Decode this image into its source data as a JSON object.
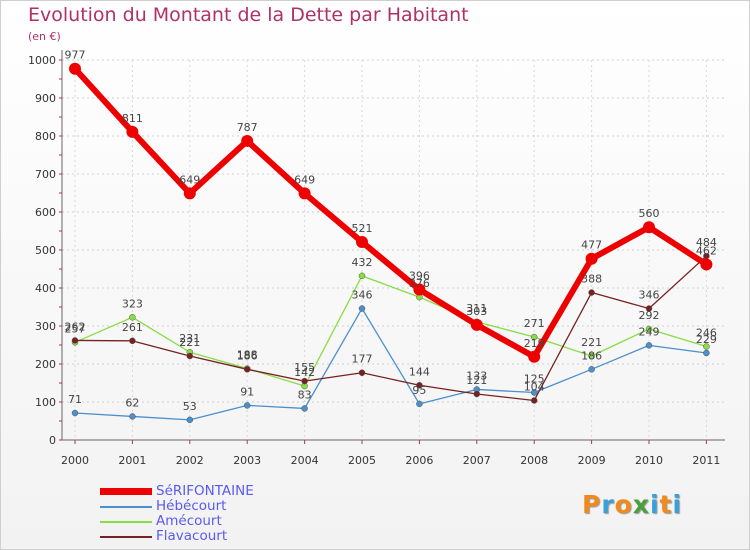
{
  "chart_data": {
    "type": "line",
    "title": "Evolution du Montant de la Dette par Habitant",
    "subtitle": "(en €)",
    "xlabel": "",
    "ylabel": "",
    "x": [
      "2000",
      "2001",
      "2002",
      "2003",
      "2004",
      "2005",
      "2006",
      "2007",
      "2008",
      "2009",
      "2010",
      "2011"
    ],
    "ylim": [
      0,
      1000
    ],
    "yticks": [
      0,
      100,
      200,
      300,
      400,
      500,
      600,
      700,
      800,
      900,
      1000
    ],
    "series": [
      {
        "name": "SéRIFONTAINE",
        "color": "#ee0000",
        "values": [
          977,
          811,
          649,
          787,
          649,
          521,
          396,
          303,
          219,
          477,
          560,
          462
        ]
      },
      {
        "name": "Hébécourt",
        "color": "#4b8fcc",
        "values": [
          71,
          62,
          53,
          91,
          83,
          346,
          95,
          133,
          125,
          186,
          249,
          229
        ]
      },
      {
        "name": "Amécourt",
        "color": "#88dd44",
        "values": [
          257,
          323,
          231,
          188,
          142,
          432,
          376,
          311,
          271,
          221,
          292,
          246
        ]
      },
      {
        "name": "Flavacourt",
        "color": "#772222",
        "values": [
          262,
          261,
          221,
          186,
          155,
          177,
          144,
          121,
          104,
          388,
          346,
          484
        ]
      }
    ]
  },
  "logo_text": "Proxiti",
  "logo_colors": [
    "#f08a1c",
    "#3aa0d8",
    "#f08a1c",
    "#4d9d3a",
    "#3aa0d8",
    "#f08a1c",
    "#3aa0d8"
  ]
}
